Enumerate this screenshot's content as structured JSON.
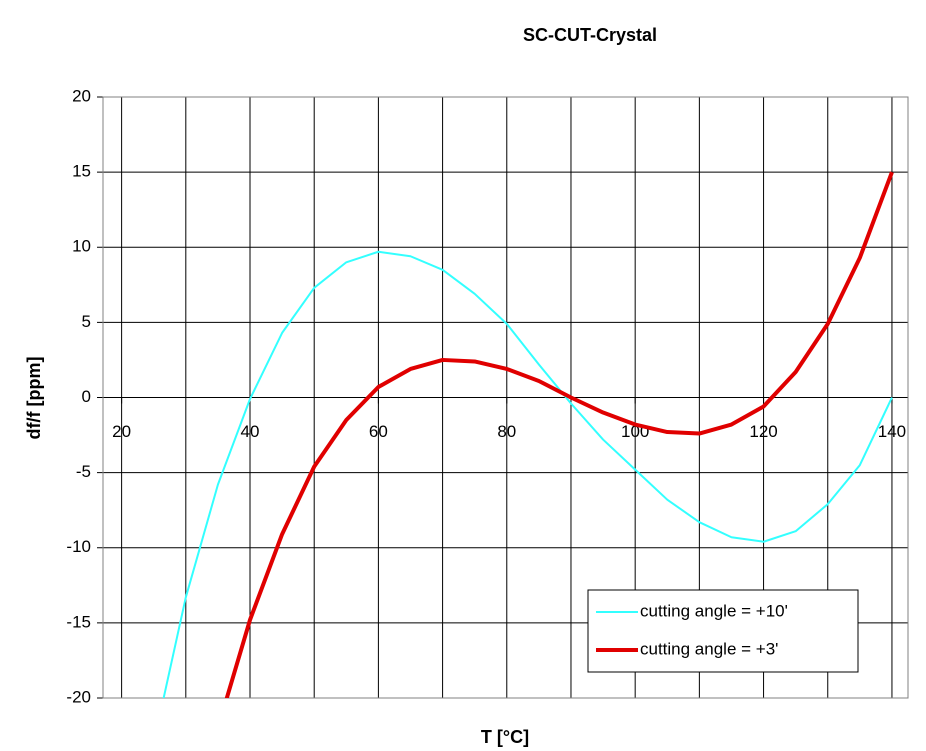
{
  "chart_data": {
    "type": "line",
    "title": "SC-CUT-Crystal",
    "x_label": "T [°C]",
    "y_label": "df/f [ppm]",
    "xlim": [
      17.1,
      142.5
    ],
    "xticks": [
      20,
      40,
      60,
      80,
      100,
      120,
      140
    ],
    "xgrid": [
      20,
      30,
      40,
      50,
      60,
      70,
      80,
      90,
      100,
      110,
      120,
      130,
      140
    ],
    "ylim": [
      -20,
      20
    ],
    "yticks": [
      -20,
      -15,
      -10,
      -5,
      0,
      5,
      10,
      15,
      20
    ],
    "grid": true,
    "legend": "lower right",
    "series": [
      {
        "name": "cutting angle = +10'",
        "color": "#33ffff",
        "width": 2,
        "x": [
          25,
          30,
          35,
          40,
          45,
          50,
          55,
          60,
          65,
          70,
          75,
          80,
          85,
          90,
          95,
          100,
          105,
          110,
          115,
          120,
          125,
          130,
          135,
          140
        ],
        "values": [
          -23,
          -13.3,
          -5.8,
          -0.1,
          4.3,
          7.3,
          9.0,
          9.7,
          9.4,
          8.5,
          6.9,
          4.9,
          2.2,
          -0.4,
          -2.8,
          -4.8,
          -6.8,
          -8.3,
          -9.3,
          -9.6,
          -8.9,
          -7.1,
          -4.5,
          0
        ]
      },
      {
        "name": "cutting angle = +3'",
        "color": "#e00000",
        "width": 4,
        "x": [
          35,
          40,
          45,
          50,
          55,
          60,
          65,
          70,
          75,
          80,
          85,
          90,
          95,
          100,
          105,
          110,
          115,
          120,
          125,
          130,
          135,
          140
        ],
        "values": [
          -22,
          -14.8,
          -9.1,
          -4.6,
          -1.5,
          0.7,
          1.9,
          2.5,
          2.4,
          1.9,
          1.1,
          0,
          -1,
          -1.8,
          -2.3,
          -2.4,
          -1.8,
          -0.6,
          1.7,
          4.9,
          9.3,
          15
        ]
      }
    ]
  }
}
